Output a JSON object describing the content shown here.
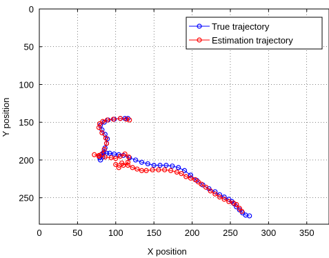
{
  "chart_data": {
    "type": "line",
    "title": "",
    "xlabel": "X position",
    "ylabel": "Y position",
    "xlim": [
      0,
      380
    ],
    "ylim": [
      285,
      0
    ],
    "y_axis_inverted": true,
    "grid": true,
    "legend_position": "top-right",
    "xticks": [
      0,
      50,
      100,
      150,
      200,
      250,
      300,
      350
    ],
    "yticks": [
      0,
      50,
      100,
      150,
      200,
      250
    ],
    "series": [
      {
        "name": "True trajectory",
        "color": "#0000ff",
        "marker": "circle",
        "x": [
          116,
          112,
          106,
          98,
          90,
          85,
          80,
          82,
          86,
          89,
          88,
          86,
          84,
          83,
          80,
          79,
          81,
          84,
          88,
          92,
          98,
          104,
          110,
          118,
          126,
          134,
          142,
          150,
          158,
          166,
          174,
          182,
          190,
          198,
          206,
          214,
          222,
          230,
          236,
          242,
          248,
          252,
          255,
          258,
          262,
          266,
          270,
          275
        ],
        "y": [
          145,
          145,
          145,
          146,
          147,
          150,
          154,
          160,
          166,
          172,
          178,
          184,
          190,
          196,
          200,
          197,
          193,
          191,
          191,
          191,
          192,
          193,
          194,
          197,
          200,
          203,
          205,
          207,
          207,
          207,
          208,
          210,
          214,
          220,
          227,
          233,
          238,
          242,
          246,
          249,
          252,
          255,
          258,
          262,
          266,
          270,
          273,
          274
        ]
      },
      {
        "name": "Estimation trajectory",
        "color": "#ff0000",
        "marker": "circle",
        "x": [
          118,
          114,
          106,
          97,
          89,
          83,
          79,
          78,
          82,
          87,
          88,
          85,
          82,
          78,
          72,
          78,
          86,
          94,
          100,
          106,
          112,
          117,
          116,
          110,
          104,
          100,
          108,
          116,
          122,
          128,
          134,
          140,
          148,
          156,
          164,
          172,
          180,
          186,
          192,
          198,
          204,
          208,
          212,
          218,
          224,
          230,
          236,
          242,
          248,
          254,
          258,
          262,
          265
        ],
        "y": [
          147,
          146,
          145,
          146,
          147,
          149,
          152,
          157,
          164,
          171,
          178,
          186,
          192,
          195,
          193,
          194,
          196,
          197,
          198,
          195,
          192,
          196,
          203,
          207,
          210,
          206,
          204,
          207,
          210,
          212,
          214,
          214,
          213,
          213,
          213,
          214,
          216,
          218,
          222,
          224,
          226,
          229,
          232,
          236,
          241,
          245,
          249,
          252,
          255,
          257,
          259,
          264,
          268
        ]
      }
    ]
  }
}
